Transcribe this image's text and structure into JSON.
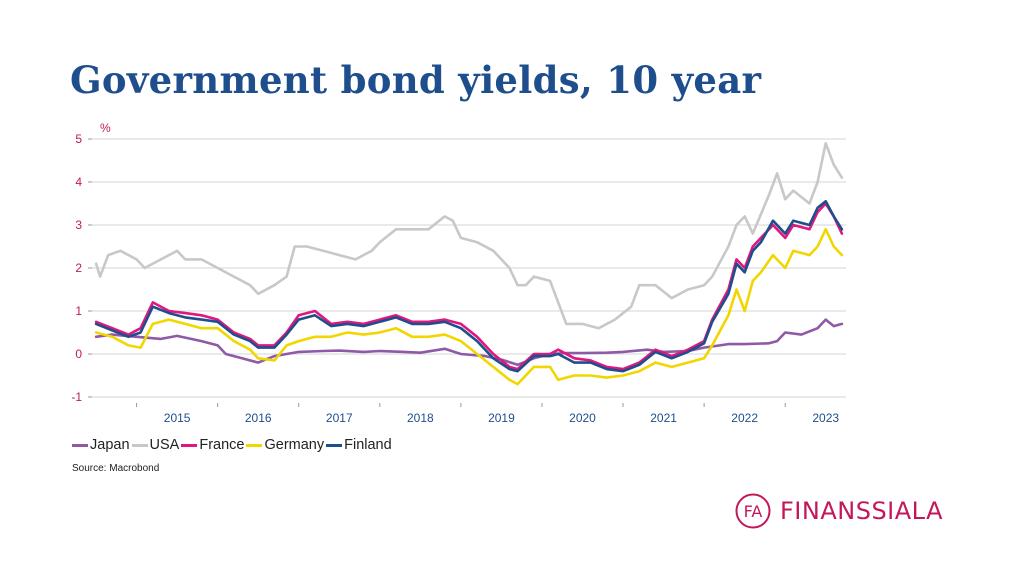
{
  "title": "Government bond yields, 10 year",
  "source": "Source: Macrobond",
  "brand": {
    "name": "FINANSSIALA",
    "mark": "FA",
    "color": "#c2185b"
  },
  "chart_data": {
    "type": "line",
    "title": "Government bond yields, 10 year",
    "unit_label": "%",
    "xlabel": "",
    "ylabel": "",
    "xlim": [
      2014.45,
      2023.75
    ],
    "ylim": [
      -1,
      5
    ],
    "yticks": [
      -1,
      0,
      1,
      2,
      3,
      4,
      5
    ],
    "xtick_labels": [
      "2015",
      "2016",
      "2017",
      "2018",
      "2019",
      "2020",
      "2021",
      "2022",
      "2023"
    ],
    "grid": "horizontal",
    "legend_position": "bottom-left",
    "series": [
      {
        "name": "Japan",
        "color": "#8e5aa8",
        "x": [
          2014.5,
          2014.7,
          2015.0,
          2015.3,
          2015.5,
          2015.8,
          2016.0,
          2016.1,
          2016.3,
          2016.5,
          2016.7,
          2017.0,
          2017.3,
          2017.5,
          2017.8,
          2018.0,
          2018.3,
          2018.5,
          2018.8,
          2019.0,
          2019.3,
          2019.5,
          2019.7,
          2019.9,
          2020.1,
          2020.3,
          2020.5,
          2020.8,
          2021.0,
          2021.3,
          2021.5,
          2021.8,
          2022.0,
          2022.3,
          2022.5,
          2022.8,
          2022.9,
          2023.0,
          2023.2,
          2023.4,
          2023.5,
          2023.6,
          2023.7
        ],
        "y": [
          0.4,
          0.45,
          0.4,
          0.35,
          0.42,
          0.3,
          0.2,
          0.0,
          -0.1,
          -0.2,
          -0.05,
          0.05,
          0.07,
          0.08,
          0.05,
          0.07,
          0.05,
          0.03,
          0.12,
          0.0,
          -0.05,
          -0.13,
          -0.25,
          -0.1,
          0.0,
          0.02,
          0.02,
          0.03,
          0.05,
          0.1,
          0.05,
          0.07,
          0.15,
          0.23,
          0.23,
          0.25,
          0.3,
          0.5,
          0.45,
          0.6,
          0.8,
          0.65,
          0.7
        ]
      },
      {
        "name": "USA",
        "color": "#c8c8c8",
        "x": [
          2014.5,
          2014.55,
          2014.65,
          2014.8,
          2015.0,
          2015.1,
          2015.3,
          2015.5,
          2015.6,
          2015.8,
          2016.0,
          2016.2,
          2016.4,
          2016.5,
          2016.7,
          2016.85,
          2016.95,
          2017.1,
          2017.3,
          2017.5,
          2017.7,
          2017.9,
          2018.0,
          2018.2,
          2018.4,
          2018.6,
          2018.8,
          2018.9,
          2019.0,
          2019.2,
          2019.4,
          2019.6,
          2019.7,
          2019.8,
          2019.9,
          2020.1,
          2020.2,
          2020.3,
          2020.5,
          2020.7,
          2020.9,
          2021.1,
          2021.2,
          2021.4,
          2021.6,
          2021.8,
          2022.0,
          2022.1,
          2022.3,
          2022.4,
          2022.5,
          2022.6,
          2022.8,
          2022.9,
          2023.0,
          2023.1,
          2023.3,
          2023.4,
          2023.5,
          2023.6,
          2023.7
        ],
        "y": [
          2.1,
          1.8,
          2.3,
          2.4,
          2.2,
          2.0,
          2.2,
          2.4,
          2.2,
          2.2,
          2.0,
          1.8,
          1.6,
          1.4,
          1.6,
          1.8,
          2.5,
          2.5,
          2.4,
          2.3,
          2.2,
          2.4,
          2.6,
          2.9,
          2.9,
          2.9,
          3.2,
          3.1,
          2.7,
          2.6,
          2.4,
          2.0,
          1.6,
          1.6,
          1.8,
          1.7,
          1.2,
          0.7,
          0.7,
          0.6,
          0.8,
          1.1,
          1.6,
          1.6,
          1.3,
          1.5,
          1.6,
          1.8,
          2.5,
          3.0,
          3.2,
          2.8,
          3.7,
          4.2,
          3.6,
          3.8,
          3.5,
          4.0,
          4.9,
          4.4,
          4.1
        ]
      },
      {
        "name": "France",
        "color": "#e0177e",
        "x": [
          2014.5,
          2014.7,
          2014.9,
          2015.05,
          2015.2,
          2015.4,
          2015.6,
          2015.8,
          2016.0,
          2016.2,
          2016.4,
          2016.5,
          2016.7,
          2016.85,
          2017.0,
          2017.2,
          2017.4,
          2017.6,
          2017.8,
          2018.0,
          2018.2,
          2018.4,
          2018.6,
          2018.8,
          2019.0,
          2019.2,
          2019.4,
          2019.6,
          2019.7,
          2019.9,
          2020.1,
          2020.2,
          2020.4,
          2020.6,
          2020.8,
          2021.0,
          2021.2,
          2021.4,
          2021.6,
          2021.8,
          2022.0,
          2022.1,
          2022.3,
          2022.4,
          2022.5,
          2022.6,
          2022.7,
          2022.85,
          2023.0,
          2023.1,
          2023.3,
          2023.4,
          2023.5,
          2023.6,
          2023.7
        ],
        "y": [
          0.75,
          0.6,
          0.45,
          0.6,
          1.2,
          1.0,
          0.95,
          0.9,
          0.8,
          0.5,
          0.35,
          0.2,
          0.2,
          0.5,
          0.9,
          1.0,
          0.7,
          0.75,
          0.7,
          0.8,
          0.9,
          0.75,
          0.75,
          0.8,
          0.7,
          0.4,
          0.0,
          -0.3,
          -0.35,
          0.0,
          0.0,
          0.1,
          -0.1,
          -0.15,
          -0.3,
          -0.35,
          -0.2,
          0.1,
          -0.05,
          0.1,
          0.3,
          0.8,
          1.5,
          2.2,
          2.0,
          2.5,
          2.7,
          3.0,
          2.7,
          3.0,
          2.9,
          3.3,
          3.5,
          3.2,
          2.8
        ]
      },
      {
        "name": "Germany",
        "color": "#f2d600",
        "x": [
          2014.5,
          2014.7,
          2014.9,
          2015.05,
          2015.2,
          2015.4,
          2015.6,
          2015.8,
          2016.0,
          2016.2,
          2016.4,
          2016.5,
          2016.7,
          2016.85,
          2017.0,
          2017.2,
          2017.4,
          2017.6,
          2017.8,
          2018.0,
          2018.2,
          2018.4,
          2018.6,
          2018.8,
          2019.0,
          2019.2,
          2019.4,
          2019.6,
          2019.7,
          2019.9,
          2020.1,
          2020.2,
          2020.4,
          2020.6,
          2020.8,
          2021.0,
          2021.2,
          2021.4,
          2021.6,
          2021.8,
          2022.0,
          2022.1,
          2022.3,
          2022.4,
          2022.5,
          2022.6,
          2022.7,
          2022.85,
          2023.0,
          2023.1,
          2023.3,
          2023.4,
          2023.5,
          2023.6,
          2023.7
        ],
        "y": [
          0.5,
          0.4,
          0.2,
          0.15,
          0.7,
          0.8,
          0.7,
          0.6,
          0.6,
          0.3,
          0.1,
          -0.1,
          -0.15,
          0.2,
          0.3,
          0.4,
          0.4,
          0.5,
          0.45,
          0.5,
          0.6,
          0.4,
          0.4,
          0.45,
          0.3,
          0.0,
          -0.3,
          -0.6,
          -0.7,
          -0.3,
          -0.3,
          -0.6,
          -0.5,
          -0.5,
          -0.55,
          -0.5,
          -0.4,
          -0.2,
          -0.3,
          -0.2,
          -0.1,
          0.2,
          0.9,
          1.5,
          1.0,
          1.7,
          1.9,
          2.3,
          2.0,
          2.4,
          2.3,
          2.5,
          2.9,
          2.5,
          2.3
        ]
      },
      {
        "name": "Finland",
        "color": "#1f4e8c",
        "x": [
          2014.5,
          2014.7,
          2014.9,
          2015.05,
          2015.2,
          2015.4,
          2015.6,
          2015.8,
          2016.0,
          2016.2,
          2016.4,
          2016.5,
          2016.7,
          2016.85,
          2017.0,
          2017.2,
          2017.4,
          2017.6,
          2017.8,
          2018.0,
          2018.2,
          2018.4,
          2018.6,
          2018.8,
          2019.0,
          2019.2,
          2019.4,
          2019.6,
          2019.7,
          2019.9,
          2020.1,
          2020.2,
          2020.4,
          2020.6,
          2020.8,
          2021.0,
          2021.2,
          2021.4,
          2021.6,
          2021.8,
          2022.0,
          2022.1,
          2022.3,
          2022.4,
          2022.5,
          2022.6,
          2022.7,
          2022.85,
          2023.0,
          2023.1,
          2023.3,
          2023.4,
          2023.5,
          2023.6,
          2023.7
        ],
        "y": [
          0.7,
          0.55,
          0.4,
          0.5,
          1.1,
          0.95,
          0.85,
          0.8,
          0.75,
          0.45,
          0.3,
          0.15,
          0.15,
          0.45,
          0.8,
          0.9,
          0.65,
          0.7,
          0.65,
          0.75,
          0.85,
          0.7,
          0.7,
          0.75,
          0.6,
          0.3,
          -0.1,
          -0.35,
          -0.4,
          -0.05,
          -0.05,
          0.0,
          -0.2,
          -0.2,
          -0.35,
          -0.4,
          -0.25,
          0.05,
          -0.1,
          0.05,
          0.25,
          0.75,
          1.4,
          2.1,
          1.9,
          2.4,
          2.6,
          3.1,
          2.8,
          3.1,
          3.0,
          3.4,
          3.55,
          3.2,
          2.9
        ]
      }
    ]
  }
}
